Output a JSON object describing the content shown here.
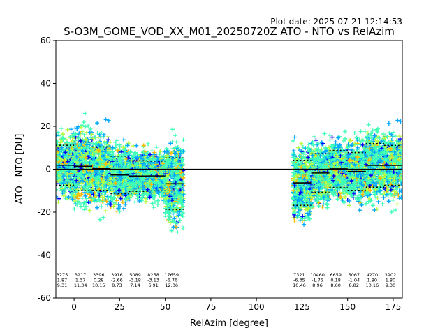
{
  "header": {
    "plot_date": "Plot date: 2025-07-21 12:14:53"
  },
  "chart_data": {
    "type": "scatter",
    "title": "S-O3M_GOME_VOD_XX_M01_20250720Z ATO - NTO vs RelAzim",
    "xlabel": "RelAzim [degree]",
    "ylabel": "ATO - NTO [DU]",
    "xlim": [
      -10,
      180
    ],
    "ylim": [
      -60,
      60
    ],
    "xticks": [
      0,
      25,
      50,
      75,
      100,
      125,
      150,
      175
    ],
    "yticks": [
      -60,
      -40,
      -20,
      0,
      20,
      40,
      60
    ],
    "grid": false,
    "legend": "none",
    "zero_line": 0,
    "marker": "+",
    "colormap": [
      "#0000ff",
      "#00a8ff",
      "#40ffb7",
      "#b7ff40",
      "#ffb900"
    ],
    "clusters": [
      {
        "x_range": [
          -10,
          58
        ],
        "y_center_mean": 0,
        "spread": 24
      },
      {
        "x_range": [
          120,
          180
        ],
        "y_center_mean": 0,
        "spread": 24
      }
    ],
    "bins": [
      {
        "x_range": [
          -10,
          0
        ],
        "mean": 1.87,
        "std": 9.31,
        "count": "3275",
        "stat_lines": [
          "3275",
          "1.87",
          "9.31"
        ]
      },
      {
        "x_range": [
          0,
          10
        ],
        "mean": 1.37,
        "std": 11.34,
        "count": "3217",
        "stat_lines": [
          "3217",
          "1.37",
          "11.34"
        ]
      },
      {
        "x_range": [
          10,
          20
        ],
        "mean": 0.28,
        "std": 10.15,
        "count": "3396",
        "stat_lines": [
          "3396",
          "0.28",
          "10.15"
        ]
      },
      {
        "x_range": [
          20,
          30
        ],
        "mean": -2.66,
        "std": 8.73,
        "count": "3916",
        "stat_lines": [
          "3916",
          "-2.66",
          "8.73"
        ]
      },
      {
        "x_range": [
          30,
          40
        ],
        "mean": -3.18,
        "std": 7.14,
        "count": "5089",
        "stat_lines": [
          "5089",
          "-3.18",
          "7.14"
        ]
      },
      {
        "x_range": [
          40,
          50
        ],
        "mean": -3.13,
        "std": 6.91,
        "count": "8258",
        "stat_lines": [
          "8258",
          "-3.13",
          "6.91"
        ]
      },
      {
        "x_range": [
          50,
          60
        ],
        "mean": -6.76,
        "std": 12.06,
        "count": "17659",
        "stat_lines": [
          "17659",
          "-6.76",
          "12.06"
        ]
      },
      {
        "x_range": [
          120,
          130
        ],
        "mean": -6.35,
        "std": 10.46,
        "count": "7321",
        "stat_lines": [
          "7321",
          "-6.35",
          "10.46"
        ]
      },
      {
        "x_range": [
          130,
          140
        ],
        "mean": -1.75,
        "std": 8.96,
        "count": "10460",
        "stat_lines": [
          "10460",
          "-1.75",
          "8.96"
        ]
      },
      {
        "x_range": [
          140,
          150
        ],
        "mean": 0.18,
        "std": 8.6,
        "count": "6659",
        "stat_lines": [
          "6659",
          "0.18",
          "8.60"
        ]
      },
      {
        "x_range": [
          150,
          160
        ],
        "mean": -1.04,
        "std": 8.82,
        "count": "5067",
        "stat_lines": [
          "5067",
          "-1.04",
          "8.82"
        ]
      },
      {
        "x_range": [
          160,
          170
        ],
        "mean": 1.8,
        "std": 10.16,
        "count": "4270",
        "stat_lines": [
          "4270",
          "1.80",
          "10.16"
        ]
      },
      {
        "x_range": [
          170,
          180
        ],
        "mean": 1.8,
        "std": 9.3,
        "count": "3902",
        "stat_lines": [
          "3902",
          "1.80",
          "9.30"
        ]
      }
    ]
  }
}
